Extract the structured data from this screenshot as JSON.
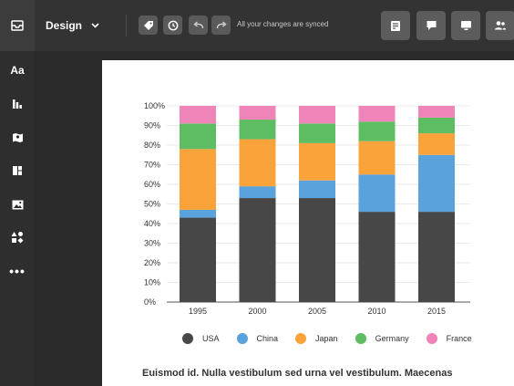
{
  "toolbar": {
    "menu_label": "Design",
    "sync_status": "All your changes are synced"
  },
  "sidebar": {
    "items": [
      {
        "name": "text-tool",
        "label": "Aa"
      },
      {
        "name": "chart-tool",
        "icon": "bar-chart-icon"
      },
      {
        "name": "map-tool",
        "icon": "map-icon"
      },
      {
        "name": "layout-tool",
        "icon": "layout-icon"
      },
      {
        "name": "image-tool",
        "icon": "image-icon"
      },
      {
        "name": "shapes-tool",
        "icon": "shapes-icon"
      },
      {
        "name": "more-tool",
        "label": "•••"
      }
    ]
  },
  "chart_data": {
    "type": "bar",
    "stacked": true,
    "categories": [
      "1995",
      "2000",
      "2005",
      "2010",
      "2015"
    ],
    "series": [
      {
        "name": "USA",
        "color": "#474747",
        "values": [
          43,
          53,
          53,
          46,
          46
        ]
      },
      {
        "name": "China",
        "color": "#5aa2dc",
        "values": [
          4,
          6,
          9,
          19,
          29
        ]
      },
      {
        "name": "Japan",
        "color": "#f9a33a",
        "values": [
          31,
          24,
          19,
          17,
          11
        ]
      },
      {
        "name": "Germany",
        "color": "#5ebc63",
        "values": [
          13,
          10,
          10,
          10,
          8
        ]
      },
      {
        "name": "France",
        "color": "#ef84b8",
        "values": [
          9,
          7,
          9,
          8,
          6
        ]
      }
    ],
    "yticks": [
      "0%",
      "10%",
      "20%",
      "30%",
      "40%",
      "50%",
      "60%",
      "70%",
      "80%",
      "90%",
      "100%"
    ],
    "ylim": [
      0,
      100
    ],
    "grid": true,
    "legend": "bottom"
  },
  "content": {
    "paragraph": "Euismod id. Nulla vestibulum sed urna vel vestibulum. Maecenas"
  }
}
